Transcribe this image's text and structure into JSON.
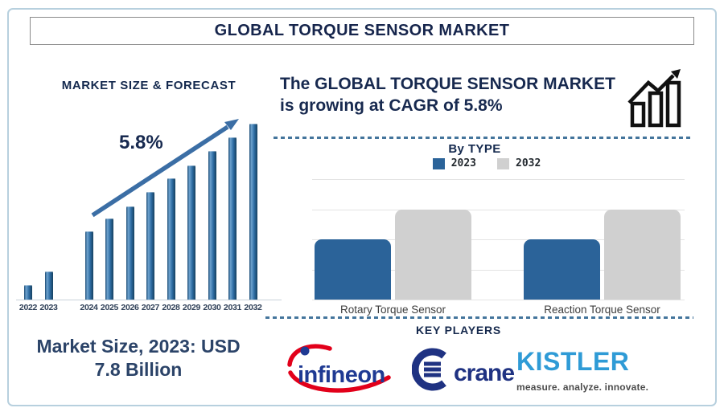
{
  "title": "GLOBAL TORQUE SENSOR MARKET",
  "forecast": {
    "title": "MARKET SIZE & FORECAST",
    "cagr_label": "5.8%"
  },
  "headline": {
    "line1": "The GLOBAL TORQUE SENSOR MARKET",
    "line2": "is growing at CAGR of 5.8%"
  },
  "by_type": {
    "title": "By TYPE",
    "legend": [
      {
        "label": "2023",
        "color": "#2b6399"
      },
      {
        "label": "2032",
        "color": "#d0d0d0"
      }
    ],
    "categories": [
      "Rotary Torque Sensor",
      "Reaction Torque Sensor"
    ]
  },
  "key_players": {
    "title": "KEY PLAYERS",
    "players": [
      {
        "name": "infineon"
      },
      {
        "name": "crane"
      },
      {
        "name": "KISTLER",
        "tagline": "measure. analyze. innovate."
      }
    ]
  },
  "market_note": {
    "line1": "Market Size, 2023: USD",
    "line2": "7.8 Billion"
  },
  "colors": {
    "navy_text": "#17294f",
    "forecast_bar_blue": "#2e6da4",
    "trend_arrow_blue": "#3b6ea5",
    "bytype_blue_2023": "#2b6399",
    "bytype_gray_2032": "#d0d0d0",
    "dashed_divider": "#44759c",
    "outer_border": "#b7d0de",
    "infineon_blue": "#1f3a93",
    "infineon_red": "#e2001a",
    "crane_navy": "#1f3282",
    "kistler_blue": "#2f9bd6",
    "kistler_tagline_gray": "#4c4c4c"
  },
  "chart_data": [
    {
      "type": "bar",
      "title": "MARKET SIZE & FORECAST",
      "categories": [
        "2022",
        "2023",
        "2024",
        "2025",
        "2026",
        "2027",
        "2028",
        "2029",
        "2030",
        "2031",
        "2032"
      ],
      "values": [
        18,
        35,
        85,
        101,
        116,
        134,
        151,
        167,
        185,
        202,
        219
      ],
      "values_note": "relative bar heights (y-axis unlabeled in source image)",
      "annotations": [
        "5.8% CAGR trend arrow rising left-to-right"
      ],
      "stated_facts": {
        "market_size_2023_usd_billion": 7.8,
        "cagr_percent": 5.8
      },
      "xlabel": "",
      "ylabel": "",
      "grid": false
    },
    {
      "type": "bar",
      "title": "By TYPE",
      "categories": [
        "Rotary Torque Sensor",
        "Reaction Torque Sensor"
      ],
      "series": [
        {
          "name": "2023",
          "values": [
            2,
            2
          ]
        },
        {
          "name": "2032",
          "values": [
            3,
            3
          ]
        }
      ],
      "values_note": "relative units, 1 gridline step = 1 (y-axis unlabeled)",
      "legend_position": "top",
      "grid": true
    }
  ]
}
